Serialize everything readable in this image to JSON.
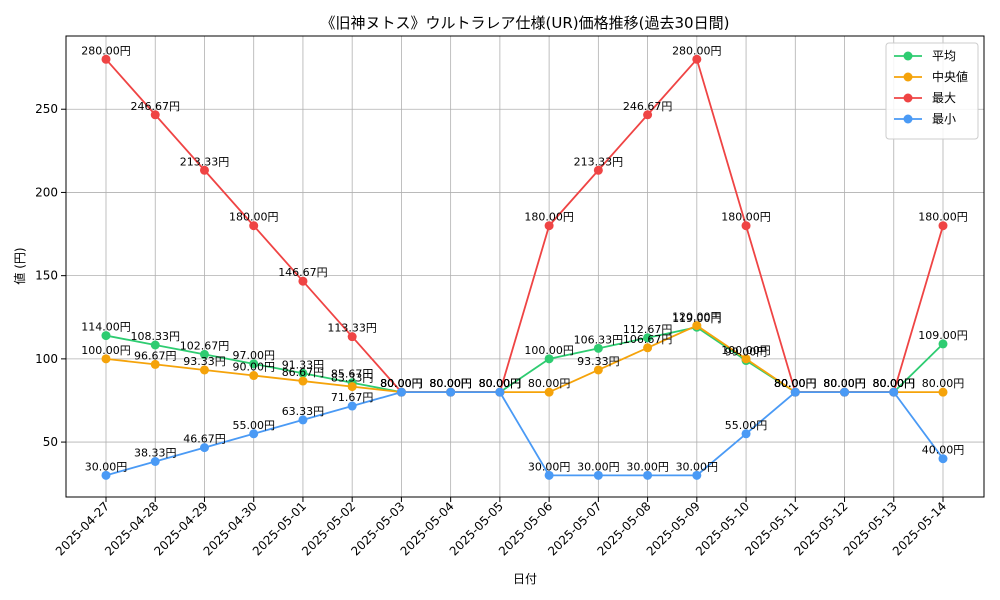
{
  "chart_data": {
    "type": "line",
    "title": "《旧神ヌトス》ウルトラレア仕様(UR)価格推移(過去30日間)",
    "xlabel": "日付",
    "ylabel": "値 (円)",
    "categories": [
      "2025-04-27",
      "2025-04-28",
      "2025-04-29",
      "2025-04-30",
      "2025-05-01",
      "2025-05-02",
      "2025-05-03",
      "2025-05-04",
      "2025-05-05",
      "2025-05-06",
      "2025-05-07",
      "2025-05-08",
      "2025-05-09",
      "2025-05-10",
      "2025-05-11",
      "2025-05-12",
      "2025-05-13",
      "2025-05-14"
    ],
    "ylim": [
      17,
      294
    ],
    "yticks": [
      50,
      100,
      150,
      200,
      250
    ],
    "grid": true,
    "legend_position": "top-right",
    "label_suffix": "円",
    "series": [
      {
        "name": "平均",
        "color": "#2ecc71",
        "values": [
          114.0,
          108.33,
          102.67,
          97.0,
          91.33,
          85.67,
          80.0,
          80.0,
          80.0,
          100.0,
          106.33,
          112.67,
          119.0,
          99.0,
          80.0,
          80.0,
          80.0,
          109.0
        ]
      },
      {
        "name": "中央値",
        "color": "#f5a30a",
        "values": [
          100.0,
          96.67,
          93.33,
          90.0,
          86.67,
          83.33,
          80.0,
          80.0,
          80.0,
          80.0,
          93.33,
          106.67,
          120.0,
          100.0,
          80.0,
          80.0,
          80.0,
          80.0
        ]
      },
      {
        "name": "最大",
        "color": "#ef4444",
        "values": [
          280.0,
          246.67,
          213.33,
          180.0,
          146.67,
          113.33,
          80.0,
          80.0,
          80.0,
          180.0,
          213.33,
          246.67,
          280.0,
          180.0,
          80.0,
          80.0,
          80.0,
          180.0
        ]
      },
      {
        "name": "最小",
        "color": "#4a9af5",
        "values": [
          30.0,
          38.33,
          46.67,
          55.0,
          63.33,
          71.67,
          80.0,
          80.0,
          80.0,
          30.0,
          30.0,
          30.0,
          30.0,
          55.0,
          80.0,
          80.0,
          80.0,
          40.0
        ]
      }
    ]
  }
}
